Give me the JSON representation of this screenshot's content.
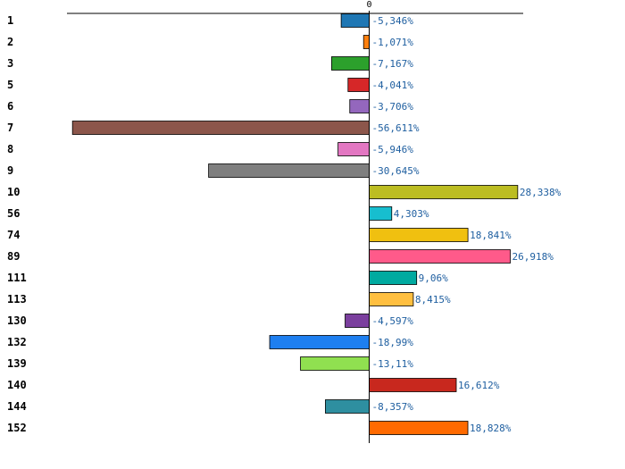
{
  "chart_data": {
    "type": "bar",
    "orientation": "horizontal",
    "title": "",
    "xlabel": "",
    "ylabel": "",
    "xlim": [
      -60,
      31
    ],
    "zero_tick_label": "0",
    "grid": false,
    "legend": "none",
    "categories": [
      "1",
      "2",
      "3",
      "5",
      "6",
      "7",
      "8",
      "9",
      "10",
      "56",
      "74",
      "89",
      "111",
      "113",
      "130",
      "132",
      "139",
      "140",
      "144",
      "152"
    ],
    "values": [
      -5.346,
      -1.071,
      -7.167,
      -4.041,
      -3.706,
      -56.611,
      -5.946,
      -30.645,
      28.338,
      4.303,
      18.841,
      26.918,
      9.06,
      8.415,
      -4.597,
      -18.99,
      -13.11,
      16.612,
      -8.357,
      18.828
    ],
    "value_labels": [
      "-5,346%",
      "-1,071%",
      "-7,167%",
      "-4,041%",
      "-3,706%",
      "-56,611%",
      "-5,946%",
      "-30,645%",
      "28,338%",
      "4,303%",
      "18,841%",
      "26,918%",
      "9,06%",
      "8,415%",
      "-4,597%",
      "-18,99%",
      "-13,11%",
      "16,612%",
      "-8,357%",
      "18,828%"
    ],
    "colors": [
      "#1f77b4",
      "#ff7f0e",
      "#2ca02c",
      "#d62728",
      "#9467bd",
      "#8c564b",
      "#e377c2",
      "#7f7f7f",
      "#bcbd22",
      "#17becf",
      "#f0c010",
      "#ff5a8a",
      "#00aaa0",
      "#ffbf40",
      "#7b3f9e",
      "#1e7ff0",
      "#90e050",
      "#c8281e",
      "#2e8fa0",
      "#ff6a00"
    ],
    "value_label_color": "#1f5fa0",
    "axis_color": "#000000"
  }
}
